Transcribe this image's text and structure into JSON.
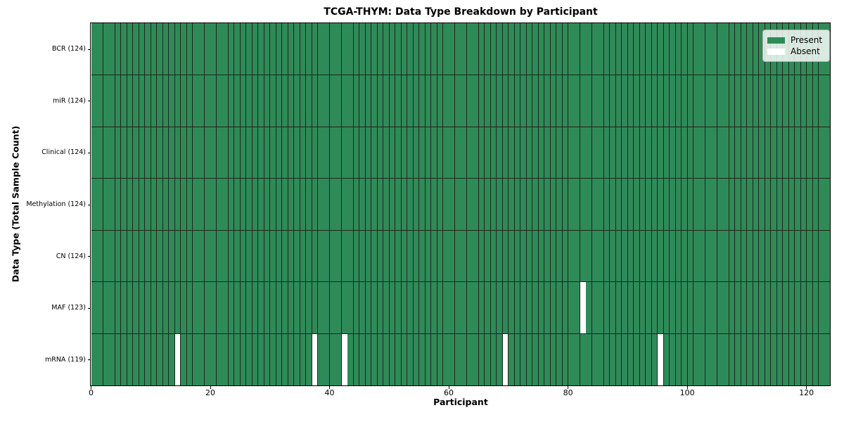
{
  "chart_data": {
    "type": "heatmap",
    "title": "TCGA-THYM: Data Type Breakdown by Participant",
    "xlabel": "Participant",
    "ylabel": "Data Type (Total Sample Count)",
    "x_ticks": [
      0,
      20,
      40,
      60,
      80,
      100,
      120
    ],
    "x_range": [
      0,
      124
    ],
    "participants": 124,
    "grid": "cell-borders",
    "legend_position": "upper right",
    "rows": [
      {
        "label": "BCR (124)",
        "data_type": "BCR",
        "present_count": 124,
        "absent_indices": []
      },
      {
        "label": "miR (124)",
        "data_type": "miR",
        "present_count": 124,
        "absent_indices": []
      },
      {
        "label": "Clinical (124)",
        "data_type": "Clinical",
        "present_count": 124,
        "absent_indices": []
      },
      {
        "label": "Methylation (124)",
        "data_type": "Methylation",
        "present_count": 124,
        "absent_indices": []
      },
      {
        "label": "CN (124)",
        "data_type": "CN",
        "present_count": 124,
        "absent_indices": []
      },
      {
        "label": "MAF (123)",
        "data_type": "MAF",
        "present_count": 123,
        "absent_indices": [
          82
        ]
      },
      {
        "label": "mRNA (119)",
        "data_type": "mRNA",
        "present_count": 119,
        "absent_indices": [
          14,
          37,
          42,
          69,
          95
        ]
      }
    ],
    "legend": [
      {
        "label": "Present",
        "color": "#2e8b57"
      },
      {
        "label": "Absent",
        "color": "#ffffff"
      }
    ],
    "colors": {
      "present": "#2e8b57",
      "absent": "#ffffff",
      "cell_edge": "#222222",
      "axis": "#000000"
    }
  }
}
